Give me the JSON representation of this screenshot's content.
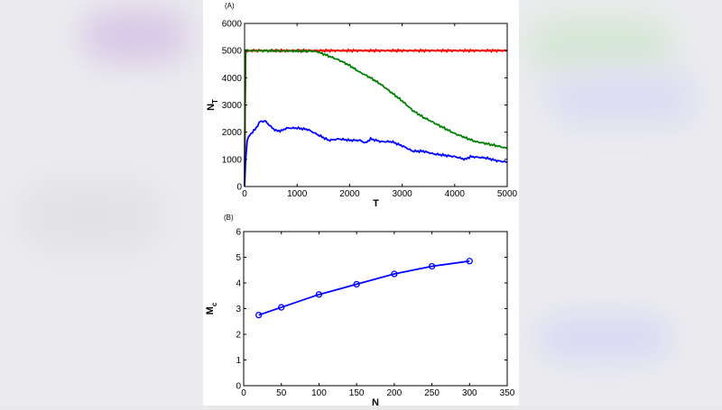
{
  "chart_data": [
    {
      "type": "line",
      "panel_label": "(A)",
      "xlabel": "T",
      "ylabel": "N",
      "ylabel_sub": "T",
      "xlim": [
        0,
        5000
      ],
      "ylim": [
        0,
        6000
      ],
      "xticks": [
        0,
        1000,
        2000,
        3000,
        4000,
        5000
      ],
      "yticks": [
        0,
        1000,
        2000,
        3000,
        4000,
        5000,
        6000
      ],
      "series": [
        {
          "name": "red",
          "color": "#ff0000",
          "x": [
            0,
            10,
            20,
            100,
            1000,
            2000,
            3000,
            4000,
            5000
          ],
          "y": [
            0,
            3000,
            5000,
            5000,
            5000,
            5000,
            5000,
            5000,
            5000
          ]
        },
        {
          "name": "green",
          "color": "#008000",
          "x": [
            0,
            10,
            20,
            1300,
            1400,
            1600,
            1800,
            2000,
            2200,
            2400,
            2600,
            2800,
            3000,
            3200,
            3400,
            3600,
            3800,
            4000,
            4200,
            4400,
            4600,
            4800,
            5000
          ],
          "y": [
            0,
            3000,
            5000,
            4980,
            4950,
            4800,
            4650,
            4450,
            4200,
            4000,
            3750,
            3450,
            3150,
            2800,
            2550,
            2350,
            2150,
            1950,
            1800,
            1650,
            1580,
            1500,
            1400
          ]
        },
        {
          "name": "blue",
          "color": "#0000ff",
          "x": [
            0,
            20,
            50,
            100,
            200,
            300,
            400,
            500,
            600,
            700,
            800,
            1000,
            1200,
            1400,
            1600,
            1800,
            2000,
            2200,
            2300,
            2400,
            2600,
            2800,
            3000,
            3200,
            3400,
            3600,
            3800,
            4000,
            4200,
            4300,
            4600,
            4800,
            5000
          ],
          "y": [
            0,
            1000,
            1700,
            1900,
            2100,
            2400,
            2400,
            2200,
            2050,
            2050,
            2150,
            2150,
            2100,
            1900,
            1700,
            1750,
            1700,
            1700,
            1600,
            1750,
            1650,
            1650,
            1500,
            1300,
            1300,
            1200,
            1150,
            1100,
            1000,
            1100,
            1050,
            950,
            900
          ]
        }
      ]
    },
    {
      "type": "line",
      "panel_label": "(B)",
      "xlabel": "N",
      "ylabel": "M",
      "ylabel_sub": "c",
      "xlim": [
        0,
        350
      ],
      "ylim": [
        0,
        6
      ],
      "xticks": [
        0,
        50,
        100,
        150,
        200,
        250,
        300,
        350
      ],
      "yticks": [
        0,
        1,
        2,
        3,
        4,
        5,
        6
      ],
      "series": [
        {
          "name": "Mc",
          "color": "#0000ff",
          "marker": "circle",
          "x": [
            20,
            50,
            100,
            150,
            200,
            250,
            300
          ],
          "y": [
            2.75,
            3.05,
            3.55,
            3.95,
            4.35,
            4.65,
            4.85
          ]
        }
      ]
    }
  ]
}
